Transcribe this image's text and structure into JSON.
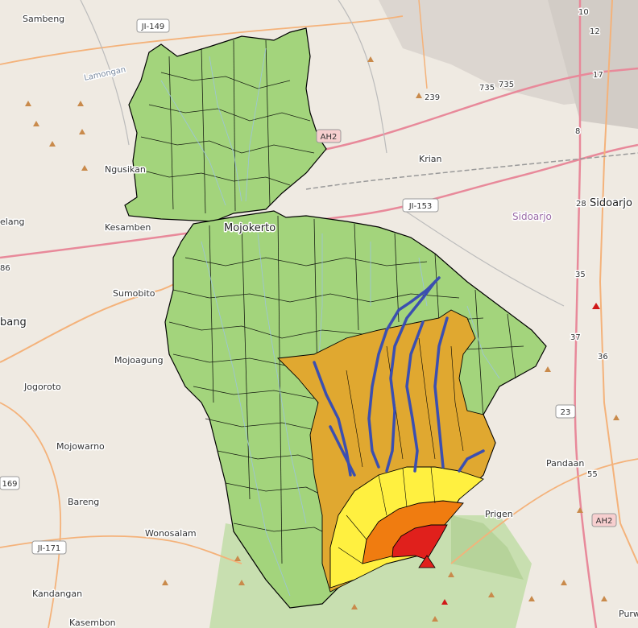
{
  "map": {
    "places": [
      {
        "name": "Sambeng"
      },
      {
        "name": "Lamongan"
      },
      {
        "name": "Ngusikan"
      },
      {
        "name": "Kesamben"
      },
      {
        "name": "elang"
      },
      {
        "name": "Sumobito"
      },
      {
        "name": "bang"
      },
      {
        "name": "Mojoagung"
      },
      {
        "name": "Jogoroto"
      },
      {
        "name": "Mojowarno"
      },
      {
        "name": "Bareng"
      },
      {
        "name": "Wonosalam"
      },
      {
        "name": "Kandangan"
      },
      {
        "name": "Kasembon"
      },
      {
        "name": "Mojokerto"
      },
      {
        "name": "Krian"
      },
      {
        "name": "Sidoarjo"
      },
      {
        "name": "Sidoarjo"
      },
      {
        "name": "Pandaan"
      },
      {
        "name": "Prigen"
      },
      {
        "name": "Purw"
      }
    ],
    "road_refs": [
      {
        "ref": "JI-149"
      },
      {
        "ref": "AH2"
      },
      {
        "ref": "JI-153"
      },
      {
        "ref": "JI-171"
      },
      {
        "ref": "169"
      },
      {
        "ref": "23"
      },
      {
        "ref": "AH2"
      },
      {
        "ref": "735"
      },
      {
        "ref": "735"
      },
      {
        "ref": "239"
      },
      {
        "ref": "28"
      },
      {
        "ref": "35"
      },
      {
        "ref": "37"
      },
      {
        "ref": "36"
      },
      {
        "ref": "8"
      },
      {
        "ref": "17"
      },
      {
        "ref": "12"
      },
      {
        "ref": "10"
      },
      {
        "ref": "55"
      },
      {
        "ref": "86"
      }
    ],
    "layers": {
      "watershed_fill": "#a3d47c",
      "hazard_low": "#e0a830",
      "hazard_yellow": "#fff040",
      "hazard_orange": "#f07c10",
      "hazard_red": "#e0201c",
      "river": "#3b4fb0",
      "basemap_bg": "#efeae2",
      "forest": "#c8dfb0"
    }
  }
}
